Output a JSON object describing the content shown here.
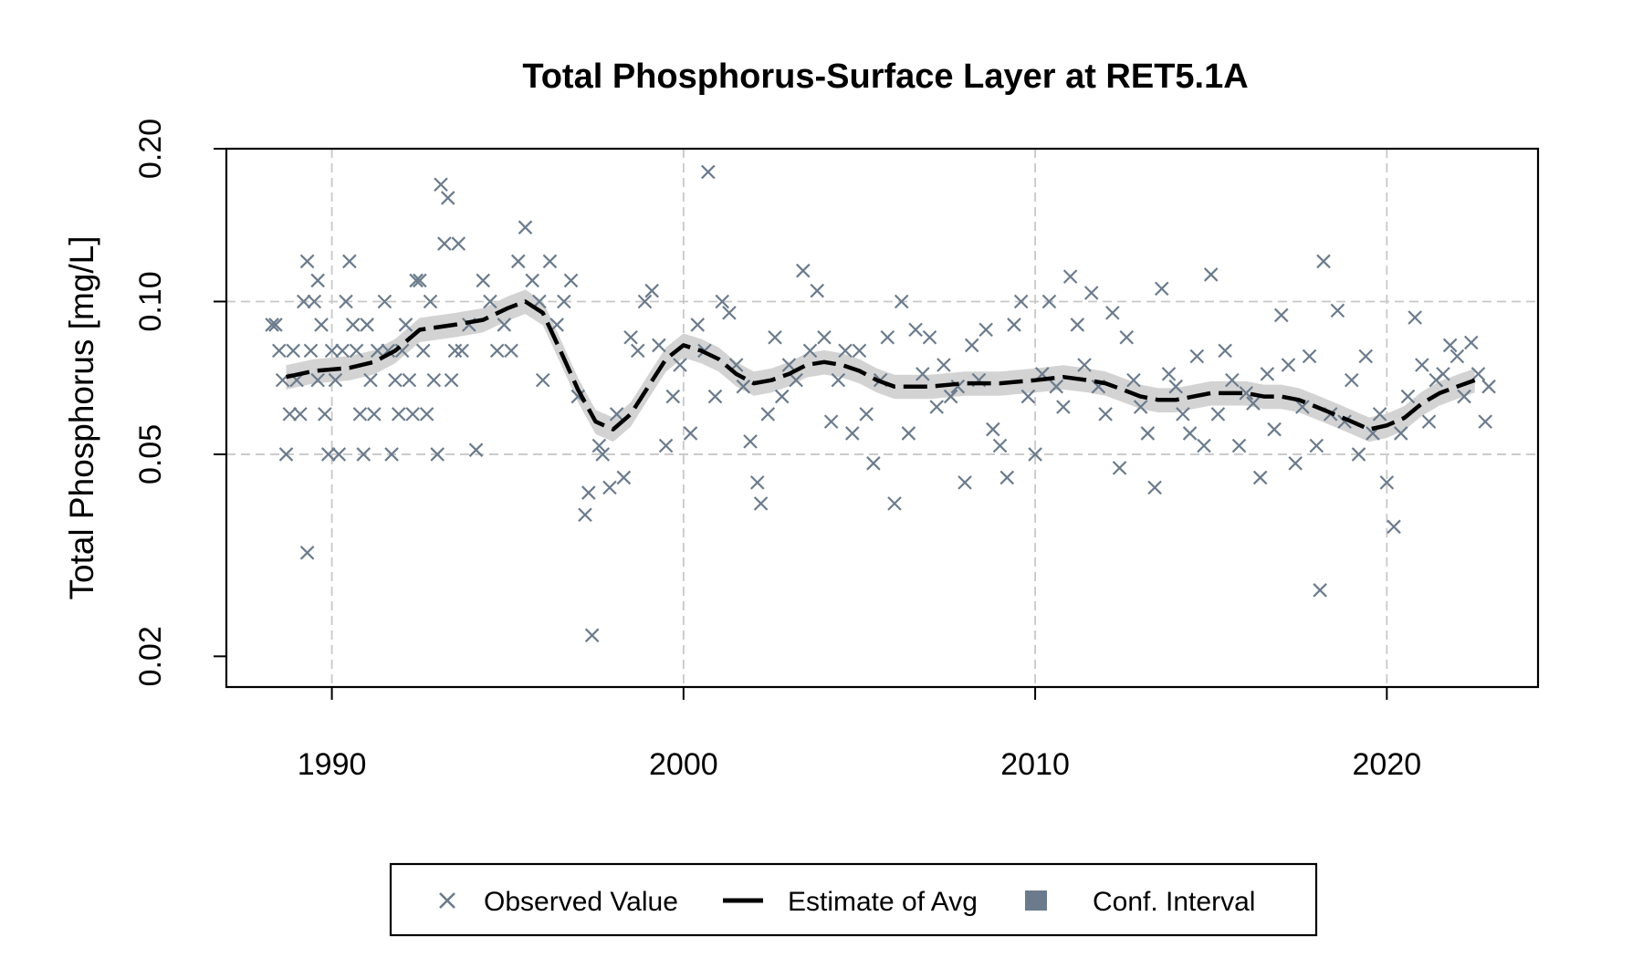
{
  "chart_data": {
    "type": "scatter",
    "title": "Total Phosphorus-Surface Layer at RET5.1A",
    "ylabel": "Total Phosphorus [mg/L]",
    "xlabel": "",
    "y_scale": "log",
    "xlim": [
      1987,
      2024.3
    ],
    "ylim": [
      0.0174,
      0.2
    ],
    "x_ticks": [
      1990,
      2000,
      2010,
      2020
    ],
    "x_tick_labels": [
      "1990",
      "2000",
      "2010",
      "2020"
    ],
    "y_ticks": [
      0.02,
      0.05,
      0.1,
      0.2
    ],
    "y_tick_labels": [
      "0.02",
      "0.05",
      "0.10",
      "0.20"
    ],
    "grid": true,
    "legend_position": "bottom",
    "colors": {
      "observed": "#6b7b8c",
      "estimate": "#000000",
      "ci_fill": "#d3d3d3",
      "grid": "#c8c8c8"
    },
    "series": [
      {
        "name": "Observed Value",
        "kind": "points",
        "points": [
          [
            1988.3,
            0.09
          ],
          [
            1988.4,
            0.09
          ],
          [
            1988.5,
            0.08
          ],
          [
            1988.6,
            0.07
          ],
          [
            1988.7,
            0.05
          ],
          [
            1988.8,
            0.06
          ],
          [
            1988.9,
            0.08
          ],
          [
            1989.0,
            0.07
          ],
          [
            1989.1,
            0.06
          ],
          [
            1989.2,
            0.1
          ],
          [
            1989.3,
            0.12
          ],
          [
            1989.3,
            0.032
          ],
          [
            1989.4,
            0.08
          ],
          [
            1989.5,
            0.1
          ],
          [
            1989.6,
            0.11
          ],
          [
            1989.6,
            0.07
          ],
          [
            1989.7,
            0.09
          ],
          [
            1989.8,
            0.06
          ],
          [
            1989.9,
            0.05
          ],
          [
            1990.0,
            0.08
          ],
          [
            1990.1,
            0.07
          ],
          [
            1990.2,
            0.05
          ],
          [
            1990.3,
            0.08
          ],
          [
            1990.4,
            0.1
          ],
          [
            1990.5,
            0.12
          ],
          [
            1990.6,
            0.09
          ],
          [
            1990.7,
            0.08
          ],
          [
            1990.8,
            0.06
          ],
          [
            1990.9,
            0.05
          ],
          [
            1991.0,
            0.09
          ],
          [
            1991.1,
            0.07
          ],
          [
            1991.2,
            0.06
          ],
          [
            1991.3,
            0.08
          ],
          [
            1991.5,
            0.1
          ],
          [
            1991.6,
            0.08
          ],
          [
            1991.7,
            0.05
          ],
          [
            1991.8,
            0.07
          ],
          [
            1991.9,
            0.06
          ],
          [
            1992.0,
            0.08
          ],
          [
            1992.1,
            0.09
          ],
          [
            1992.2,
            0.07
          ],
          [
            1992.3,
            0.06
          ],
          [
            1992.4,
            0.11
          ],
          [
            1992.5,
            0.11
          ],
          [
            1992.6,
            0.08
          ],
          [
            1992.7,
            0.06
          ],
          [
            1992.8,
            0.1
          ],
          [
            1992.9,
            0.07
          ],
          [
            1993.0,
            0.05
          ],
          [
            1993.1,
            0.17
          ],
          [
            1993.2,
            0.13
          ],
          [
            1993.3,
            0.16
          ],
          [
            1993.4,
            0.07
          ],
          [
            1993.5,
            0.08
          ],
          [
            1993.6,
            0.13
          ],
          [
            1993.7,
            0.08
          ],
          [
            1993.9,
            0.09
          ],
          [
            1994.1,
            0.051
          ],
          [
            1994.3,
            0.11
          ],
          [
            1994.5,
            0.1
          ],
          [
            1994.7,
            0.08
          ],
          [
            1994.9,
            0.09
          ],
          [
            1995.1,
            0.08
          ],
          [
            1995.3,
            0.12
          ],
          [
            1995.5,
            0.14
          ],
          [
            1995.7,
            0.11
          ],
          [
            1995.9,
            0.1
          ],
          [
            1996.0,
            0.07
          ],
          [
            1996.2,
            0.12
          ],
          [
            1996.4,
            0.09
          ],
          [
            1996.6,
            0.1
          ],
          [
            1996.8,
            0.11
          ],
          [
            1997.0,
            0.065
          ],
          [
            1997.2,
            0.038
          ],
          [
            1997.3,
            0.042
          ],
          [
            1997.4,
            0.022
          ],
          [
            1997.6,
            0.052
          ],
          [
            1997.7,
            0.05
          ],
          [
            1997.9,
            0.043
          ],
          [
            1998.1,
            0.06
          ],
          [
            1998.3,
            0.045
          ],
          [
            1998.5,
            0.085
          ],
          [
            1998.7,
            0.08
          ],
          [
            1998.9,
            0.1
          ],
          [
            1999.1,
            0.105
          ],
          [
            1999.3,
            0.082
          ],
          [
            1999.5,
            0.052
          ],
          [
            1999.7,
            0.065
          ],
          [
            1999.9,
            0.075
          ],
          [
            2000.2,
            0.055
          ],
          [
            2000.4,
            0.09
          ],
          [
            2000.6,
            0.08
          ],
          [
            2000.7,
            0.18
          ],
          [
            2000.9,
            0.065
          ],
          [
            2001.1,
            0.1
          ],
          [
            2001.3,
            0.095
          ],
          [
            2001.5,
            0.075
          ],
          [
            2001.7,
            0.068
          ],
          [
            2001.9,
            0.053
          ],
          [
            2002.1,
            0.044
          ],
          [
            2002.2,
            0.04
          ],
          [
            2002.4,
            0.06
          ],
          [
            2002.6,
            0.085
          ],
          [
            2002.8,
            0.065
          ],
          [
            2003.0,
            0.075
          ],
          [
            2003.2,
            0.07
          ],
          [
            2003.4,
            0.115
          ],
          [
            2003.6,
            0.08
          ],
          [
            2003.8,
            0.105
          ],
          [
            2004.0,
            0.085
          ],
          [
            2004.2,
            0.058
          ],
          [
            2004.4,
            0.07
          ],
          [
            2004.6,
            0.08
          ],
          [
            2004.8,
            0.055
          ],
          [
            2005.0,
            0.08
          ],
          [
            2005.2,
            0.06
          ],
          [
            2005.4,
            0.048
          ],
          [
            2005.6,
            0.07
          ],
          [
            2005.8,
            0.085
          ],
          [
            2006.0,
            0.04
          ],
          [
            2006.2,
            0.1
          ],
          [
            2006.4,
            0.055
          ],
          [
            2006.6,
            0.088
          ],
          [
            2006.8,
            0.072
          ],
          [
            2007.0,
            0.085
          ],
          [
            2007.2,
            0.062
          ],
          [
            2007.4,
            0.075
          ],
          [
            2007.6,
            0.065
          ],
          [
            2007.8,
            0.068
          ],
          [
            2008.0,
            0.044
          ],
          [
            2008.2,
            0.082
          ],
          [
            2008.4,
            0.07
          ],
          [
            2008.6,
            0.088
          ],
          [
            2008.8,
            0.056
          ],
          [
            2009.0,
            0.052
          ],
          [
            2009.2,
            0.045
          ],
          [
            2009.4,
            0.09
          ],
          [
            2009.6,
            0.1
          ],
          [
            2009.8,
            0.065
          ],
          [
            2010.0,
            0.05
          ],
          [
            2010.2,
            0.072
          ],
          [
            2010.4,
            0.1
          ],
          [
            2010.6,
            0.068
          ],
          [
            2010.8,
            0.062
          ],
          [
            2011.0,
            0.112
          ],
          [
            2011.2,
            0.09
          ],
          [
            2011.4,
            0.075
          ],
          [
            2011.6,
            0.104
          ],
          [
            2011.8,
            0.068
          ],
          [
            2012.0,
            0.06
          ],
          [
            2012.2,
            0.095
          ],
          [
            2012.4,
            0.047
          ],
          [
            2012.6,
            0.085
          ],
          [
            2012.8,
            0.07
          ],
          [
            2013.0,
            0.062
          ],
          [
            2013.2,
            0.055
          ],
          [
            2013.4,
            0.043
          ],
          [
            2013.6,
            0.106
          ],
          [
            2013.8,
            0.072
          ],
          [
            2014.0,
            0.068
          ],
          [
            2014.2,
            0.06
          ],
          [
            2014.4,
            0.055
          ],
          [
            2014.6,
            0.078
          ],
          [
            2014.8,
            0.052
          ],
          [
            2015.0,
            0.113
          ],
          [
            2015.2,
            0.06
          ],
          [
            2015.4,
            0.08
          ],
          [
            2015.6,
            0.07
          ],
          [
            2015.8,
            0.052
          ],
          [
            2016.0,
            0.066
          ],
          [
            2016.2,
            0.063
          ],
          [
            2016.4,
            0.045
          ],
          [
            2016.6,
            0.072
          ],
          [
            2016.8,
            0.056
          ],
          [
            2017.0,
            0.094
          ],
          [
            2017.2,
            0.075
          ],
          [
            2017.4,
            0.048
          ],
          [
            2017.6,
            0.062
          ],
          [
            2017.8,
            0.078
          ],
          [
            2018.0,
            0.052
          ],
          [
            2018.1,
            0.027
          ],
          [
            2018.2,
            0.12
          ],
          [
            2018.4,
            0.06
          ],
          [
            2018.6,
            0.096
          ],
          [
            2018.8,
            0.058
          ],
          [
            2019.0,
            0.07
          ],
          [
            2019.2,
            0.05
          ],
          [
            2019.4,
            0.078
          ],
          [
            2019.6,
            0.055
          ],
          [
            2019.8,
            0.06
          ],
          [
            2020.0,
            0.044
          ],
          [
            2020.2,
            0.036
          ],
          [
            2020.4,
            0.055
          ],
          [
            2020.6,
            0.065
          ],
          [
            2020.8,
            0.093
          ],
          [
            2021.0,
            0.075
          ],
          [
            2021.2,
            0.058
          ],
          [
            2021.4,
            0.07
          ],
          [
            2021.6,
            0.072
          ],
          [
            2021.8,
            0.082
          ],
          [
            2022.0,
            0.078
          ],
          [
            2022.2,
            0.065
          ],
          [
            2022.4,
            0.083
          ],
          [
            2022.6,
            0.072
          ],
          [
            2022.8,
            0.058
          ],
          [
            2022.9,
            0.068
          ]
        ]
      },
      {
        "name": "Estimate of Avg",
        "kind": "line",
        "points": [
          [
            1988.7,
            0.071
          ],
          [
            1989.5,
            0.073
          ],
          [
            1990.5,
            0.074
          ],
          [
            1991.2,
            0.076
          ],
          [
            1991.8,
            0.08
          ],
          [
            1992.5,
            0.088
          ],
          [
            1993.5,
            0.09
          ],
          [
            1994.3,
            0.092
          ],
          [
            1995.0,
            0.097
          ],
          [
            1995.5,
            0.1
          ],
          [
            1996.0,
            0.095
          ],
          [
            1996.5,
            0.08
          ],
          [
            1997.0,
            0.067
          ],
          [
            1997.5,
            0.058
          ],
          [
            1998.0,
            0.056
          ],
          [
            1998.5,
            0.06
          ],
          [
            1999.0,
            0.068
          ],
          [
            1999.5,
            0.077
          ],
          [
            2000.0,
            0.082
          ],
          [
            2000.5,
            0.08
          ],
          [
            2001.0,
            0.077
          ],
          [
            2001.5,
            0.072
          ],
          [
            2002.0,
            0.069
          ],
          [
            2002.5,
            0.07
          ],
          [
            2003.0,
            0.072
          ],
          [
            2003.5,
            0.075
          ],
          [
            2004.0,
            0.076
          ],
          [
            2004.5,
            0.075
          ],
          [
            2005.0,
            0.073
          ],
          [
            2005.5,
            0.07
          ],
          [
            2006.0,
            0.068
          ],
          [
            2006.5,
            0.068
          ],
          [
            2007.0,
            0.068
          ],
          [
            2008.0,
            0.069
          ],
          [
            2009.0,
            0.069
          ],
          [
            2010.0,
            0.07
          ],
          [
            2010.8,
            0.071
          ],
          [
            2011.5,
            0.07
          ],
          [
            2012.0,
            0.069
          ],
          [
            2012.5,
            0.067
          ],
          [
            2013.0,
            0.065
          ],
          [
            2013.5,
            0.064
          ],
          [
            2014.0,
            0.064
          ],
          [
            2014.5,
            0.065
          ],
          [
            2015.0,
            0.066
          ],
          [
            2015.5,
            0.066
          ],
          [
            2016.0,
            0.066
          ],
          [
            2016.5,
            0.065
          ],
          [
            2017.0,
            0.065
          ],
          [
            2017.5,
            0.064
          ],
          [
            2018.0,
            0.062
          ],
          [
            2018.5,
            0.06
          ],
          [
            2019.0,
            0.058
          ],
          [
            2019.5,
            0.056
          ],
          [
            2020.0,
            0.057
          ],
          [
            2020.5,
            0.059
          ],
          [
            2021.0,
            0.063
          ],
          [
            2021.5,
            0.066
          ],
          [
            2022.0,
            0.068
          ],
          [
            2022.5,
            0.07
          ]
        ]
      },
      {
        "name": "Conf. Interval",
        "kind": "band",
        "rel_halfwidth": 0.055
      }
    ]
  }
}
